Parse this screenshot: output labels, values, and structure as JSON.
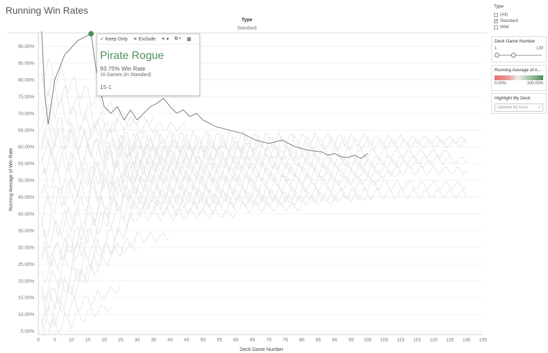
{
  "title": "Running Win Rates",
  "header": {
    "type_label": "Type",
    "type_value": "Standard"
  },
  "chart_data": {
    "type": "line",
    "xlabel": "Deck Game Number",
    "ylabel": "Running Average of Win Rate",
    "xlim": [
      0,
      135
    ],
    "ylim": [
      0.04,
      0.94
    ],
    "x_ticks": [
      0,
      5,
      10,
      15,
      20,
      25,
      30,
      35,
      40,
      45,
      50,
      55,
      60,
      65,
      70,
      75,
      80,
      85,
      90,
      95,
      100,
      105,
      110,
      115,
      120,
      125,
      130,
      135
    ],
    "y_ticks": [
      0.05,
      0.1,
      0.15,
      0.2,
      0.25,
      0.3,
      0.35,
      0.4,
      0.45,
      0.5,
      0.55,
      0.6,
      0.65,
      0.7,
      0.75,
      0.8,
      0.85,
      0.9
    ],
    "y_tick_labels": [
      "5.00%",
      "10.00%",
      "15.00%",
      "20.00%",
      "25.00%",
      "30.00%",
      "35.00%",
      "40.00%",
      "45.00%",
      "50.00%",
      "55.00%",
      "60.00%",
      "65.00%",
      "70.00%",
      "75.00%",
      "80.00%",
      "85.00%",
      "90.00%"
    ],
    "highlight_color": "#4f8f5e",
    "background_color": "#e6e6e6",
    "highlight_series": {
      "points": [
        [
          1,
          1.0
        ],
        [
          2,
          0.75
        ],
        [
          3,
          0.667
        ],
        [
          5,
          0.8
        ],
        [
          8,
          0.875
        ],
        [
          12,
          0.917
        ],
        [
          16,
          0.9375
        ],
        [
          18,
          0.8
        ],
        [
          20,
          0.72
        ],
        [
          22,
          0.7
        ],
        [
          24,
          0.72
        ],
        [
          26,
          0.68
        ],
        [
          28,
          0.71
        ],
        [
          30,
          0.68
        ],
        [
          32,
          0.7
        ],
        [
          34,
          0.72
        ],
        [
          36,
          0.73
        ],
        [
          38,
          0.745
        ],
        [
          40,
          0.72
        ],
        [
          42,
          0.7
        ],
        [
          44,
          0.71
        ],
        [
          46,
          0.69
        ],
        [
          48,
          0.7
        ],
        [
          50,
          0.68
        ],
        [
          54,
          0.66
        ],
        [
          58,
          0.65
        ],
        [
          62,
          0.64
        ],
        [
          66,
          0.62
        ],
        [
          70,
          0.61
        ],
        [
          74,
          0.62
        ],
        [
          78,
          0.6
        ],
        [
          82,
          0.59
        ],
        [
          86,
          0.585
        ],
        [
          88,
          0.575
        ],
        [
          90,
          0.58
        ],
        [
          92,
          0.57
        ],
        [
          94,
          0.568
        ],
        [
          96,
          0.575
        ],
        [
          98,
          0.565
        ],
        [
          100,
          0.58
        ]
      ]
    },
    "background_series": [
      {
        "start": 0.4,
        "end": 0.62,
        "len": 130
      },
      {
        "start": 0.55,
        "end": 0.61,
        "len": 130
      },
      {
        "start": 0.3,
        "end": 0.58,
        "len": 125
      },
      {
        "start": 0.65,
        "end": 0.56,
        "len": 130
      },
      {
        "start": 0.2,
        "end": 0.55,
        "len": 120
      },
      {
        "start": 0.5,
        "end": 0.53,
        "len": 130
      },
      {
        "start": 0.7,
        "end": 0.52,
        "len": 110
      },
      {
        "start": 0.15,
        "end": 0.5,
        "len": 105
      },
      {
        "start": 0.45,
        "end": 0.485,
        "len": 130
      },
      {
        "start": 0.6,
        "end": 0.46,
        "len": 130
      },
      {
        "start": 0.35,
        "end": 0.45,
        "len": 100
      },
      {
        "start": 0.25,
        "end": 0.44,
        "len": 90
      },
      {
        "start": 0.1,
        "end": 0.42,
        "len": 80
      },
      {
        "start": 0.8,
        "end": 0.6,
        "len": 70
      },
      {
        "start": 0.05,
        "end": 0.4,
        "len": 60
      },
      {
        "start": 0.75,
        "end": 0.58,
        "len": 85
      },
      {
        "start": 0.12,
        "end": 0.33,
        "len": 40
      },
      {
        "start": 0.28,
        "end": 0.3,
        "len": 30
      },
      {
        "start": 0.08,
        "end": 0.2,
        "len": 25
      },
      {
        "start": 0.05,
        "end": 0.15,
        "len": 22
      },
      {
        "start": 0.6,
        "end": 0.68,
        "len": 35
      },
      {
        "start": 0.85,
        "end": 0.66,
        "len": 45
      }
    ]
  },
  "tooltip": {
    "keep_only": "Keep Only",
    "exclude": "Exclude",
    "deck_name": "Pirate Rogue",
    "win_rate": "93.75% Win Rate",
    "games_count": "16 Games",
    "games_context": "(in Standard)",
    "record": "15-1"
  },
  "filters": {
    "type": {
      "title": "Type",
      "options": [
        {
          "label": "(All)",
          "checked": false
        },
        {
          "label": "Standard",
          "checked": true
        },
        {
          "label": "Wild",
          "checked": false
        }
      ]
    },
    "deck_game_number": {
      "title": "Deck Game Number",
      "min": "1",
      "max": "130",
      "value_low": 1,
      "value_high": 130
    },
    "legend": {
      "title": "Running Average of AV...",
      "min_label": "0.00%",
      "max_label": "100.00%"
    },
    "highlight": {
      "title": "Highlight My Deck",
      "placeholder": "Highlight My Deck"
    }
  }
}
